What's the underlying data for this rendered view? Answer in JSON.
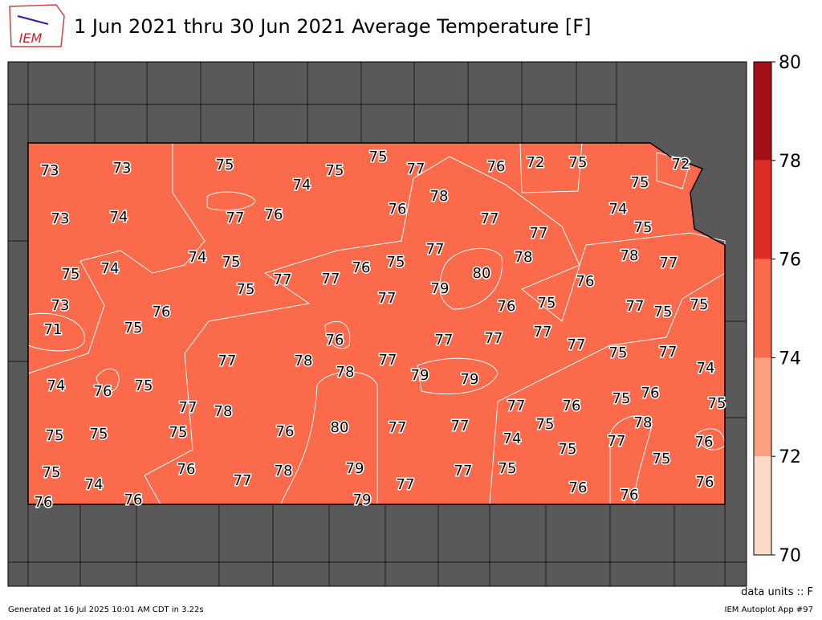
{
  "header": {
    "logo": "IEM",
    "title": "1 Jun 2021 thru 30 Jun 2021 Average Temperature [F]"
  },
  "map": {
    "stations": [
      73,
      73,
      75,
      75,
      75,
      77,
      76,
      72,
      75,
      72,
      74,
      78,
      75,
      73,
      74,
      77,
      76,
      76,
      77,
      74,
      75,
      77,
      74,
      75,
      77,
      75,
      78,
      78,
      77,
      75,
      74,
      76,
      80,
      75,
      77,
      77,
      79,
      76,
      73,
      76,
      77,
      76,
      75,
      77,
      75,
      75,
      71,
      75,
      76,
      77,
      77,
      77,
      77,
      75,
      77,
      77,
      78,
      78,
      77,
      79,
      79,
      74,
      74,
      76,
      75,
      77,
      78,
      77,
      76,
      75,
      76,
      75,
      76,
      80,
      77,
      77,
      78,
      75,
      75,
      75,
      74,
      75,
      77,
      76,
      75,
      75,
      75,
      74,
      76,
      77,
      78,
      79,
      77,
      77,
      75,
      76,
      76,
      76,
      76,
      79,
      76
    ],
    "colorbar": {
      "levels": [
        70,
        72,
        74,
        76,
        78,
        80
      ],
      "colors": [
        "#fdd9c9",
        "#fc9f80",
        "#fb6a4a",
        "#de2d26",
        "#a50f15"
      ]
    },
    "units": "data units :: F"
  },
  "footer": {
    "generated": "Generated at 16 Jul 2025 10:01 AM CDT in 3.22s",
    "app": "IEM Autoplot App #97"
  }
}
